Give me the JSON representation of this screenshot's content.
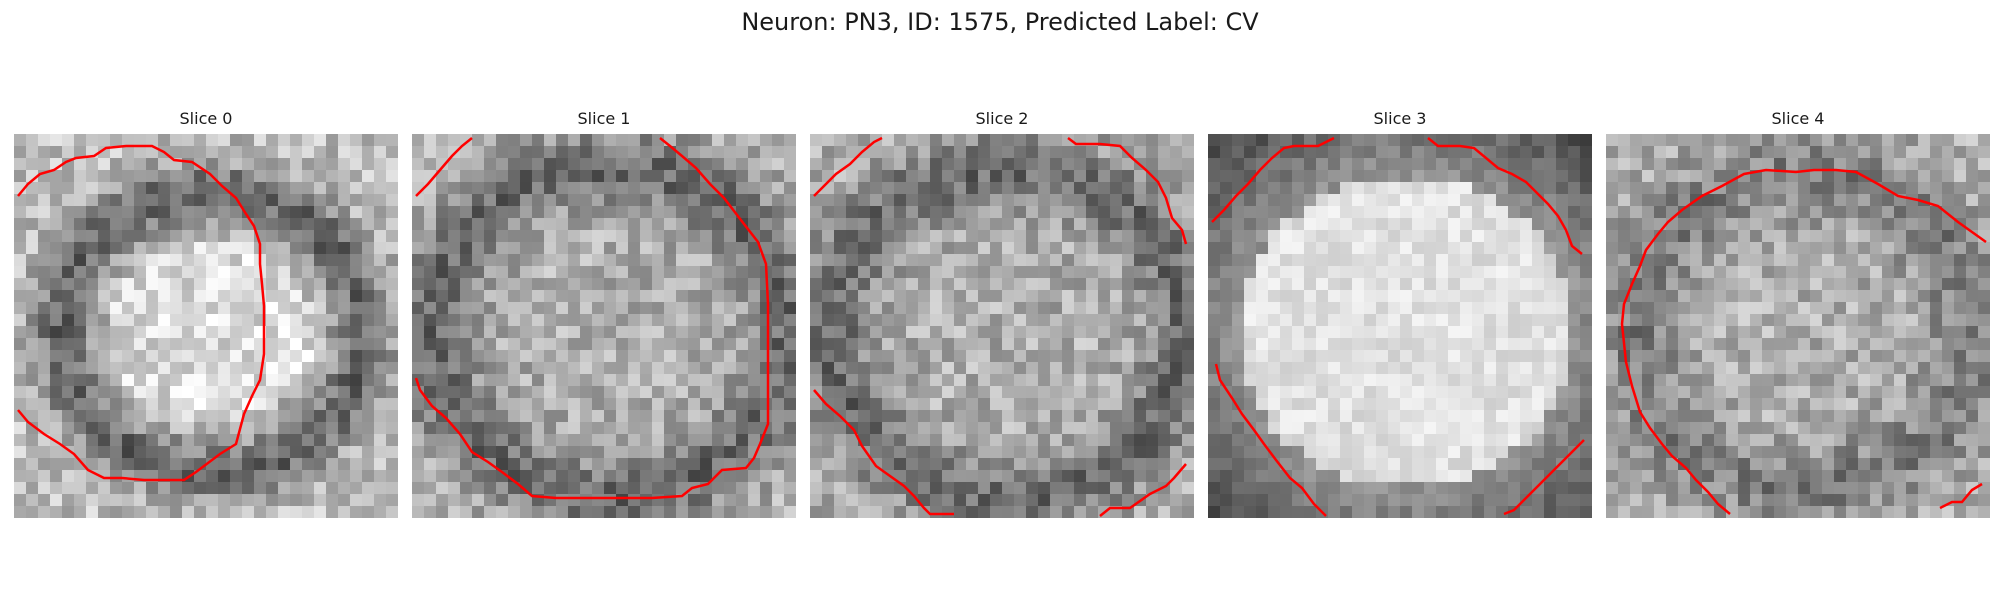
{
  "figure": {
    "title": "Neuron: PN3, ID: 1575, Predicted Label: CV",
    "panels": [
      {
        "title": "Slice 0",
        "contour_color": "#ff0000",
        "style": "ring"
      },
      {
        "title": "Slice 1",
        "contour_color": "#ff0000",
        "style": "granular"
      },
      {
        "title": "Slice 2",
        "contour_color": "#ff0000",
        "style": "granular"
      },
      {
        "title": "Slice 3",
        "contour_color": "#ff0000",
        "style": "bright"
      },
      {
        "title": "Slice 4",
        "contour_color": "#ff0000",
        "style": "granular-dark"
      }
    ]
  }
}
